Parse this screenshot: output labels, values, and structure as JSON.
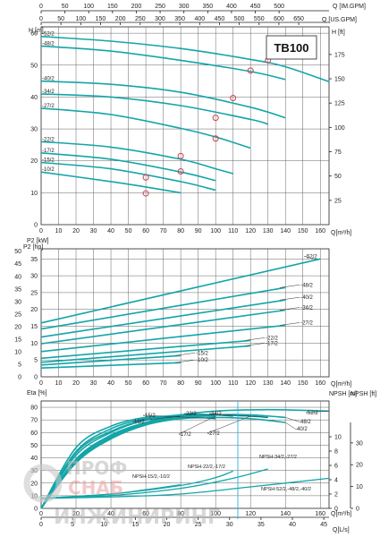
{
  "model": "TB100",
  "chart_data": [
    {
      "type": "line",
      "panel": "head",
      "title": "TB100",
      "xlabel": "Q[m³/h]",
      "ylabel": "H [m]",
      "ylabel_right": "H [ft]",
      "x_ticks": [
        "0",
        "10",
        "20",
        "30",
        "40",
        "50",
        "60",
        "70",
        "80",
        "90",
        "100",
        "110",
        "120",
        "130",
        "140",
        "150",
        "160"
      ],
      "y_ticks": [
        "0",
        "10",
        "20",
        "30",
        "40",
        "50",
        "60"
      ],
      "y2_ticks": [
        "25",
        "50",
        "75",
        "100",
        "125",
        "150",
        "175"
      ],
      "top_axis_1": {
        "label": "Q [IM.GPM]",
        "ticks": [
          "0",
          "50",
          "100",
          "150",
          "200",
          "250",
          "300",
          "350",
          "400",
          "450",
          "500"
        ]
      },
      "top_axis_2": {
        "label": "Q [US.GPM]",
        "ticks": [
          "0",
          "50",
          "100",
          "150",
          "200",
          "250",
          "300",
          "350",
          "400",
          "450",
          "500",
          "550",
          "600",
          "650"
        ]
      },
      "xlim": [
        0,
        165
      ],
      "ylim": [
        0,
        62
      ],
      "grid": true,
      "series": [
        {
          "name": "-52/2",
          "x": [
            0,
            40,
            80,
            120,
            140,
            165
          ],
          "y": [
            59,
            57.5,
            55.2,
            51.8,
            49.5,
            44.8
          ]
        },
        {
          "name": "-48/2",
          "x": [
            0,
            40,
            80,
            120,
            140
          ],
          "y": [
            56,
            54.4,
            51.5,
            48,
            45.5
          ]
        },
        {
          "name": "-40/2",
          "x": [
            0,
            40,
            80,
            120,
            140
          ],
          "y": [
            45,
            44,
            41.5,
            36.8,
            33.5
          ]
        },
        {
          "name": "-34/2",
          "x": [
            0,
            40,
            80,
            120,
            130
          ],
          "y": [
            41,
            40,
            37.3,
            33,
            31.5
          ]
        },
        {
          "name": "-27/2",
          "x": [
            0,
            40,
            80,
            100,
            120
          ],
          "y": [
            36.5,
            34.5,
            30.2,
            27.5,
            24
          ]
        },
        {
          "name": "-22/2",
          "x": [
            0,
            40,
            80,
            100,
            110
          ],
          "y": [
            26,
            24.3,
            20.5,
            17.5,
            16
          ]
        },
        {
          "name": "-17/2",
          "x": [
            0,
            40,
            80,
            100
          ],
          "y": [
            22.5,
            20.5,
            16.5,
            13.8
          ]
        },
        {
          "name": "-15/2",
          "x": [
            0,
            40,
            80,
            100
          ],
          "y": [
            19.5,
            17.5,
            13.5,
            10.8
          ]
        },
        {
          "name": "-10/2",
          "x": [
            0,
            40,
            60,
            80
          ],
          "y": [
            16.5,
            13.5,
            11.8,
            10
          ]
        }
      ],
      "marked_points": [
        {
          "x": 130,
          "y": 51.5
        },
        {
          "x": 120,
          "y": 48.3
        },
        {
          "x": 110,
          "y": 39.7
        },
        {
          "x": 100,
          "y": 33.5
        },
        {
          "x": 100,
          "y": 27
        },
        {
          "x": 80,
          "y": 21.5
        },
        {
          "x": 80,
          "y": 16.7
        },
        {
          "x": 60,
          "y": 14.8
        },
        {
          "x": 60,
          "y": 9.8
        }
      ]
    },
    {
      "type": "line",
      "panel": "power",
      "xlabel": "Q[m³/h]",
      "ylabel": "P2 [kW]",
      "ylabel_left": "P2 [hp]",
      "x_ticks": [
        "0",
        "10",
        "20",
        "30",
        "40",
        "50",
        "60",
        "70",
        "80",
        "90",
        "100",
        "110",
        "120",
        "130",
        "140",
        "150",
        "160"
      ],
      "y_ticks": [
        "0",
        "5",
        "10",
        "15",
        "20",
        "25",
        "30",
        "35"
      ],
      "y2_ticks": [
        "0",
        "5",
        "10",
        "15",
        "20",
        "25",
        "30",
        "35",
        "40",
        "45",
        "50"
      ],
      "xlim": [
        0,
        165
      ],
      "ylim": [
        0,
        38
      ],
      "grid": true,
      "series": [
        {
          "name": "-52/2",
          "x": [
            0,
            160
          ],
          "y": [
            16,
            35
          ]
        },
        {
          "name": "-48/2",
          "x": [
            0,
            140
          ],
          "y": [
            14.2,
            26.5
          ]
        },
        {
          "name": "-40/2",
          "x": [
            0,
            140
          ],
          "y": [
            11.8,
            22.8
          ]
        },
        {
          "name": "-34/2",
          "x": [
            0,
            140
          ],
          "y": [
            9.8,
            19.8
          ]
        },
        {
          "name": "-27/2",
          "x": [
            0,
            140
          ],
          "y": [
            7.5,
            15.3
          ]
        },
        {
          "name": "-22/2",
          "x": [
            0,
            120
          ],
          "y": [
            5.5,
            10.8
          ]
        },
        {
          "name": "-17/2",
          "x": [
            0,
            120
          ],
          "y": [
            4.3,
            9.2
          ]
        },
        {
          "name": "-15/2",
          "x": [
            0,
            80
          ],
          "y": [
            3.5,
            6.3
          ]
        },
        {
          "name": "-10/2",
          "x": [
            0,
            80
          ],
          "y": [
            2.6,
            4.2
          ]
        }
      ]
    },
    {
      "type": "line",
      "panel": "efficiency_npsh",
      "xlabel": "Q[m³/h]",
      "xlabel_2": "Q[L/s]",
      "ylabel": "Eta [%]",
      "ylabel_right": "NPSH [m]",
      "ylabel_right_2": "NPSH [ft]",
      "x_ticks": [
        "0",
        "20",
        "40",
        "60",
        "80",
        "100",
        "120",
        "140",
        "160"
      ],
      "x2_ticks": [
        "0",
        "5",
        "10",
        "15",
        "20",
        "25",
        "30",
        "35",
        "40",
        "45"
      ],
      "y_ticks": [
        "0",
        "10",
        "20",
        "30",
        "40",
        "50",
        "60",
        "70",
        "80"
      ],
      "npsh_m_ticks": [
        "0",
        "2",
        "4",
        "6",
        "8",
        "10"
      ],
      "npsh_ft_ticks": [
        "0",
        "10",
        "20",
        "30"
      ],
      "xlim": [
        0,
        165
      ],
      "ylim": [
        0,
        85
      ],
      "efficiency_series": [
        {
          "name": "-52/2",
          "x": [
            0,
            20,
            40,
            60,
            80,
            100,
            120,
            140,
            165
          ],
          "y": [
            0,
            38,
            57,
            68,
            74,
            77,
            78,
            78,
            77
          ]
        },
        {
          "name": "-48/2",
          "x": [
            0,
            20,
            40,
            60,
            80,
            100,
            120,
            140
          ],
          "y": [
            0,
            37,
            56,
            67,
            72,
            74,
            74,
            72
          ]
        },
        {
          "name": "-40/2",
          "x": [
            0,
            20,
            40,
            60,
            80,
            100,
            120,
            140
          ],
          "y": [
            0,
            36,
            55,
            66,
            71,
            72,
            71,
            68
          ]
        },
        {
          "name": "-34/2",
          "x": [
            0,
            20,
            40,
            60,
            80,
            100,
            120,
            130
          ],
          "y": [
            0,
            37,
            56,
            67,
            72,
            74,
            73,
            72
          ]
        },
        {
          "name": "-27/2",
          "x": [
            0,
            20,
            40,
            60,
            80,
            100,
            120
          ],
          "y": [
            0,
            39,
            58,
            68,
            73,
            74,
            73
          ]
        },
        {
          "name": "-22/2",
          "x": [
            0,
            20,
            40,
            60,
            80,
            100,
            110
          ],
          "y": [
            0,
            42,
            60,
            70,
            74,
            74,
            73
          ]
        },
        {
          "name": "-17/2",
          "x": [
            0,
            20,
            40,
            60,
            80,
            100
          ],
          "y": [
            0,
            44,
            61,
            70,
            73,
            73
          ]
        },
        {
          "name": "-15/2",
          "x": [
            0,
            20,
            40,
            60,
            80,
            100
          ],
          "y": [
            0,
            45,
            63,
            71,
            73,
            71
          ]
        },
        {
          "name": "-10/2",
          "x": [
            0,
            20,
            40,
            60,
            80
          ],
          "y": [
            0,
            48,
            65,
            72,
            73
          ]
        }
      ],
      "npsh_series": [
        {
          "name": "NPSH-52/2,-48/2,-40/2",
          "x": [
            0,
            40,
            80,
            120,
            165
          ],
          "y": [
            1.4,
            1.6,
            2,
            3,
            4.2
          ]
        },
        {
          "name": "NPSH-34/2,-27/2",
          "x": [
            0,
            40,
            80,
            110,
            130
          ],
          "y": [
            1.4,
            1.8,
            2.8,
            4.2,
            5.5
          ]
        },
        {
          "name": "NPSH-22/2,-17/2",
          "x": [
            0,
            40,
            80,
            100,
            110
          ],
          "y": [
            1.4,
            2,
            3.2,
            4.3,
            5.2
          ]
        },
        {
          "name": "NPSH-15/2,-10/2",
          "x": [
            0,
            40,
            60,
            80
          ],
          "y": [
            1.4,
            2,
            2.6,
            3.3
          ]
        }
      ]
    }
  ],
  "watermark": {
    "line1": "ПРОФ",
    "line2": "СНАБ",
    "line3": "ИНЖИНИРИНГ"
  }
}
